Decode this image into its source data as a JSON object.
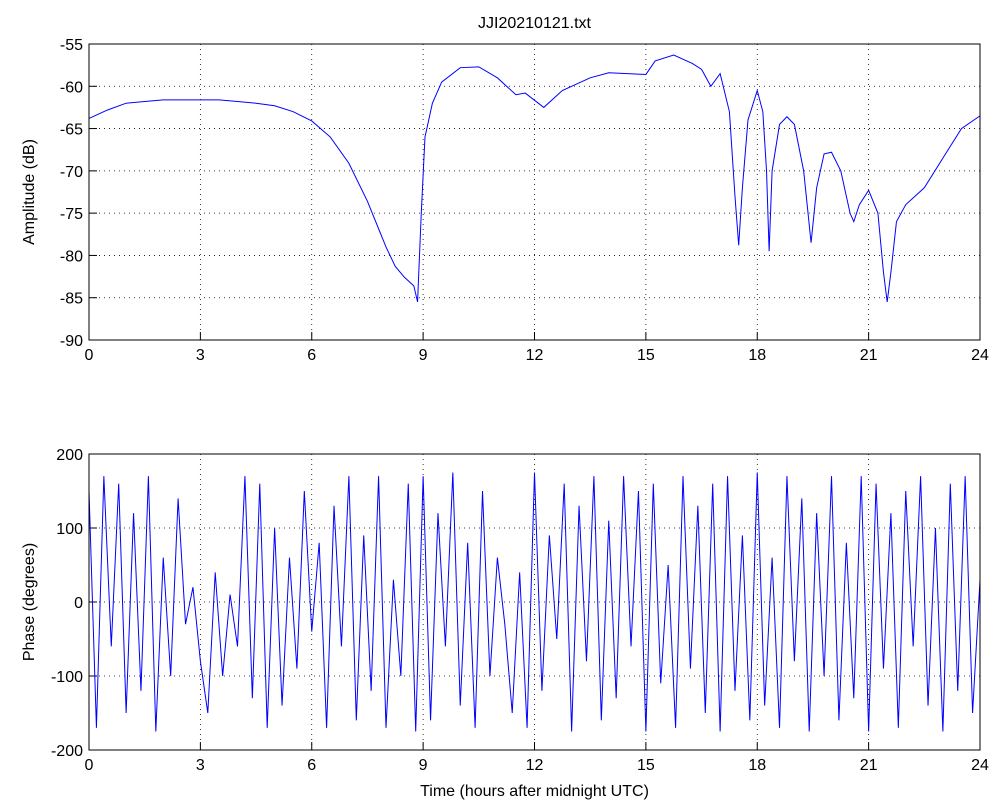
{
  "chart_data": [
    {
      "type": "line",
      "title": "JJI20210121.txt",
      "ylabel": "Amplitude (dB)",
      "grid": true,
      "x": [
        0,
        0.5,
        1,
        1.5,
        2,
        2.5,
        3,
        3.5,
        4,
        4.5,
        5,
        5.5,
        6,
        6.5,
        7,
        7.5,
        8,
        8.25,
        8.5,
        8.75,
        8.85,
        8.95,
        9.05,
        9.25,
        9.5,
        10,
        10.5,
        11,
        11.5,
        11.75,
        12.25,
        12.75,
        13.5,
        14,
        14.5,
        15,
        15.25,
        15.75,
        16.25,
        16.5,
        16.75,
        17,
        17.25,
        17.4,
        17.5,
        17.6,
        17.75,
        18,
        18.15,
        18.25,
        18.32,
        18.4,
        18.6,
        18.8,
        19,
        19.25,
        19.45,
        19.6,
        19.8,
        20,
        20.25,
        20.5,
        20.6,
        20.75,
        21,
        21.25,
        21.4,
        21.5,
        21.6,
        21.75,
        22,
        22.5,
        23,
        23.5,
        24
      ],
      "series": [
        {
          "color": "#0000ff",
          "values": [
            -63.8,
            -62.8,
            -62,
            -61.8,
            -61.6,
            -61.6,
            -61.6,
            -61.6,
            -61.8,
            -62,
            -62.3,
            -63,
            -64.1,
            -66,
            -69.1,
            -73.6,
            -79,
            -81.3,
            -82.6,
            -83.6,
            -85.5,
            -75,
            -66,
            -62,
            -59.5,
            -57.8,
            -57.7,
            -59,
            -61,
            -60.8,
            -62.5,
            -60.5,
            -59,
            -58.4,
            -58.5,
            -58.6,
            -57,
            -56.3,
            -57.3,
            -58,
            -60,
            -58.5,
            -63,
            -73,
            -78.8,
            -72,
            -64,
            -60.5,
            -63,
            -70,
            -79.5,
            -70,
            -64.5,
            -63.6,
            -64.5,
            -70,
            -78.5,
            -72,
            -68,
            -67.8,
            -70,
            -75,
            -76,
            -74,
            -72.3,
            -75,
            -82,
            -85.5,
            -82,
            -76,
            -74,
            -72,
            -68.5,
            -65,
            -63.5
          ]
        }
      ],
      "xlim": [
        0,
        24
      ],
      "xticks": [
        0,
        3,
        6,
        9,
        12,
        15,
        18,
        21,
        24
      ],
      "ylim": [
        -90,
        -55
      ],
      "yticks": [
        -90,
        -85,
        -80,
        -75,
        -70,
        -65,
        -60,
        -55
      ]
    },
    {
      "type": "line",
      "ylabel": "Phase (degrees)",
      "xlabel": "Time (hours after midnight UTC)",
      "grid": true,
      "x": [
        0,
        0.2,
        0.4,
        0.6,
        0.8,
        1,
        1.2,
        1.4,
        1.6,
        1.8,
        2,
        2.2,
        2.4,
        2.6,
        2.8,
        3,
        3.2,
        3.4,
        3.6,
        3.8,
        4,
        4.2,
        4.4,
        4.6,
        4.8,
        5,
        5.2,
        5.4,
        5.6,
        5.8,
        6,
        6.2,
        6.4,
        6.6,
        6.8,
        7,
        7.2,
        7.4,
        7.6,
        7.8,
        8,
        8.2,
        8.4,
        8.6,
        8.8,
        9,
        9.2,
        9.4,
        9.6,
        9.8,
        10,
        10.2,
        10.4,
        10.6,
        10.8,
        11,
        11.2,
        11.4,
        11.6,
        11.8,
        12,
        12.2,
        12.4,
        12.6,
        12.8,
        13,
        13.2,
        13.4,
        13.6,
        13.8,
        14,
        14.2,
        14.4,
        14.6,
        14.8,
        15,
        15.2,
        15.4,
        15.6,
        15.8,
        16,
        16.2,
        16.4,
        16.6,
        16.8,
        17,
        17.2,
        17.4,
        17.6,
        17.8,
        18,
        18.2,
        18.4,
        18.6,
        18.8,
        19,
        19.2,
        19.4,
        19.6,
        19.8,
        20,
        20.2,
        20.4,
        20.6,
        20.8,
        21,
        21.2,
        21.4,
        21.6,
        21.8,
        22,
        22.2,
        22.4,
        22.6,
        22.8,
        23,
        23.2,
        23.4,
        23.6,
        23.8,
        24
      ],
      "series": [
        {
          "color": "#0000ff",
          "values": [
            150,
            -170,
            170,
            -60,
            160,
            -150,
            120,
            -120,
            170,
            -175,
            60,
            -100,
            140,
            -30,
            20,
            -80,
            -150,
            40,
            -100,
            10,
            -60,
            170,
            -130,
            160,
            -170,
            100,
            -140,
            60,
            -90,
            150,
            -40,
            80,
            -170,
            130,
            -60,
            170,
            -160,
            90,
            -120,
            170,
            -170,
            30,
            -100,
            160,
            -175,
            170,
            -160,
            120,
            -60,
            175,
            -140,
            80,
            -170,
            150,
            -100,
            60,
            -30,
            -150,
            40,
            -170,
            175,
            -120,
            90,
            -50,
            160,
            -175,
            130,
            -80,
            170,
            -160,
            110,
            -130,
            170,
            -60,
            150,
            -175,
            160,
            -110,
            50,
            -170,
            170,
            -90,
            130,
            -150,
            160,
            -175,
            170,
            -120,
            90,
            -160,
            175,
            -140,
            60,
            -170,
            170,
            -80,
            140,
            -175,
            120,
            -100,
            170,
            -160,
            80,
            -130,
            170,
            -175,
            160,
            -90,
            120,
            -170,
            150,
            -60,
            170,
            -140,
            100,
            -175,
            160,
            -120,
            170,
            -150,
            30
          ]
        }
      ],
      "xlim": [
        0,
        24
      ],
      "xticks": [
        0,
        3,
        6,
        9,
        12,
        15,
        18,
        21,
        24
      ],
      "ylim": [
        -200,
        200
      ],
      "yticks": [
        -200,
        -100,
        0,
        100,
        200
      ]
    }
  ]
}
